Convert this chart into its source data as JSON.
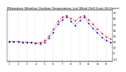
{
  "title": "Milwaukee Weather Outdoor Temperature (vs) Wind Chill (Last 24 Hours)",
  "title_fontsize": 3.2,
  "background_color": "#ffffff",
  "line1_color": "#dd0000",
  "line2_color": "#0000cc",
  "yticks": [
    -10,
    0,
    10,
    20,
    30,
    40,
    50,
    60,
    70
  ],
  "ytick_fontsize": 2.6,
  "xtick_fontsize": 2.4,
  "grid_color": "#999999",
  "ymin": -15,
  "ymax": 75,
  "temp_data": [
    20,
    20,
    20,
    19,
    19,
    18,
    17,
    18,
    22,
    30,
    42,
    55,
    62,
    65,
    60,
    56,
    62,
    65,
    58,
    50,
    42,
    34,
    28,
    24
  ],
  "wc_data": [
    20,
    20,
    20,
    19,
    19,
    18,
    17,
    16,
    18,
    26,
    36,
    50,
    58,
    63,
    55,
    48,
    56,
    62,
    52,
    43,
    35,
    27,
    22,
    19
  ],
  "time_labels": [
    "1",
    "",
    "2",
    "",
    "3",
    "",
    "4",
    "",
    "5",
    "",
    "6",
    "",
    "7",
    "",
    "8",
    "",
    "9",
    "",
    "10",
    "",
    "11",
    "",
    "12",
    ""
  ],
  "n_points": 24
}
